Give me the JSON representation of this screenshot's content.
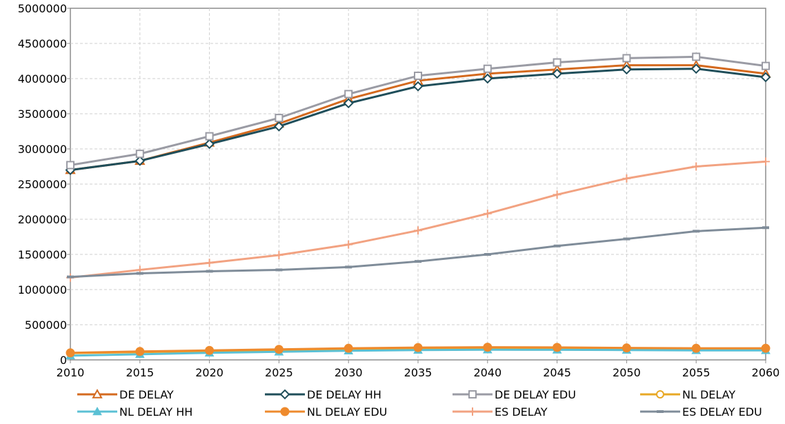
{
  "chart_data": {
    "type": "line",
    "title": "",
    "xlabel": "",
    "ylabel": "",
    "x": [
      2010,
      2015,
      2020,
      2025,
      2030,
      2035,
      2040,
      2045,
      2050,
      2055,
      2060
    ],
    "xlim": [
      2010,
      2060
    ],
    "ylim": [
      0,
      5000000
    ],
    "yticks": [
      0,
      500000,
      1000000,
      1500000,
      2000000,
      2500000,
      3000000,
      3500000,
      4000000,
      4500000,
      5000000
    ],
    "grid": true,
    "legend_position": "bottom",
    "series": [
      {
        "name": "DE DELAY",
        "color": "#D46A1F",
        "marker": "triangle-open",
        "values": [
          2700000,
          2830000,
          3090000,
          3360000,
          3710000,
          3970000,
          4070000,
          4130000,
          4190000,
          4190000,
          4070000
        ]
      },
      {
        "name": "DE DELAY HH",
        "color": "#1F4E5A",
        "marker": "diamond-open",
        "values": [
          2700000,
          2830000,
          3070000,
          3320000,
          3650000,
          3890000,
          4000000,
          4070000,
          4130000,
          4140000,
          4020000
        ]
      },
      {
        "name": "DE DELAY EDU",
        "color": "#9A9BA4",
        "marker": "square-open",
        "values": [
          2770000,
          2930000,
          3180000,
          3440000,
          3780000,
          4040000,
          4140000,
          4230000,
          4290000,
          4310000,
          4180000
        ]
      },
      {
        "name": "NL DELAY",
        "color": "#E8A825",
        "marker": "circle-open",
        "values": [
          95000,
          110000,
          125000,
          140000,
          155000,
          165000,
          170000,
          168000,
          160000,
          155000,
          155000
        ]
      },
      {
        "name": "NL DELAY HH",
        "color": "#5BC0D4",
        "marker": "triangle-filled",
        "values": [
          60000,
          80000,
          100000,
          115000,
          130000,
          140000,
          145000,
          143000,
          140000,
          135000,
          135000
        ]
      },
      {
        "name": "NL DELAY EDU",
        "color": "#EE8A2D",
        "marker": "circle-filled",
        "values": [
          100000,
          120000,
          135000,
          150000,
          165000,
          175000,
          180000,
          178000,
          170000,
          165000,
          165000
        ]
      },
      {
        "name": "ES DELAY",
        "color": "#F2A281",
        "marker": "plus",
        "values": [
          1170000,
          1280000,
          1380000,
          1490000,
          1640000,
          1840000,
          2080000,
          2350000,
          2580000,
          2750000,
          2820000
        ]
      },
      {
        "name": "ES DELAY EDU",
        "color": "#7F8C99",
        "marker": "dash",
        "values": [
          1180000,
          1230000,
          1260000,
          1280000,
          1320000,
          1400000,
          1500000,
          1620000,
          1720000,
          1830000,
          1880000
        ]
      }
    ]
  }
}
